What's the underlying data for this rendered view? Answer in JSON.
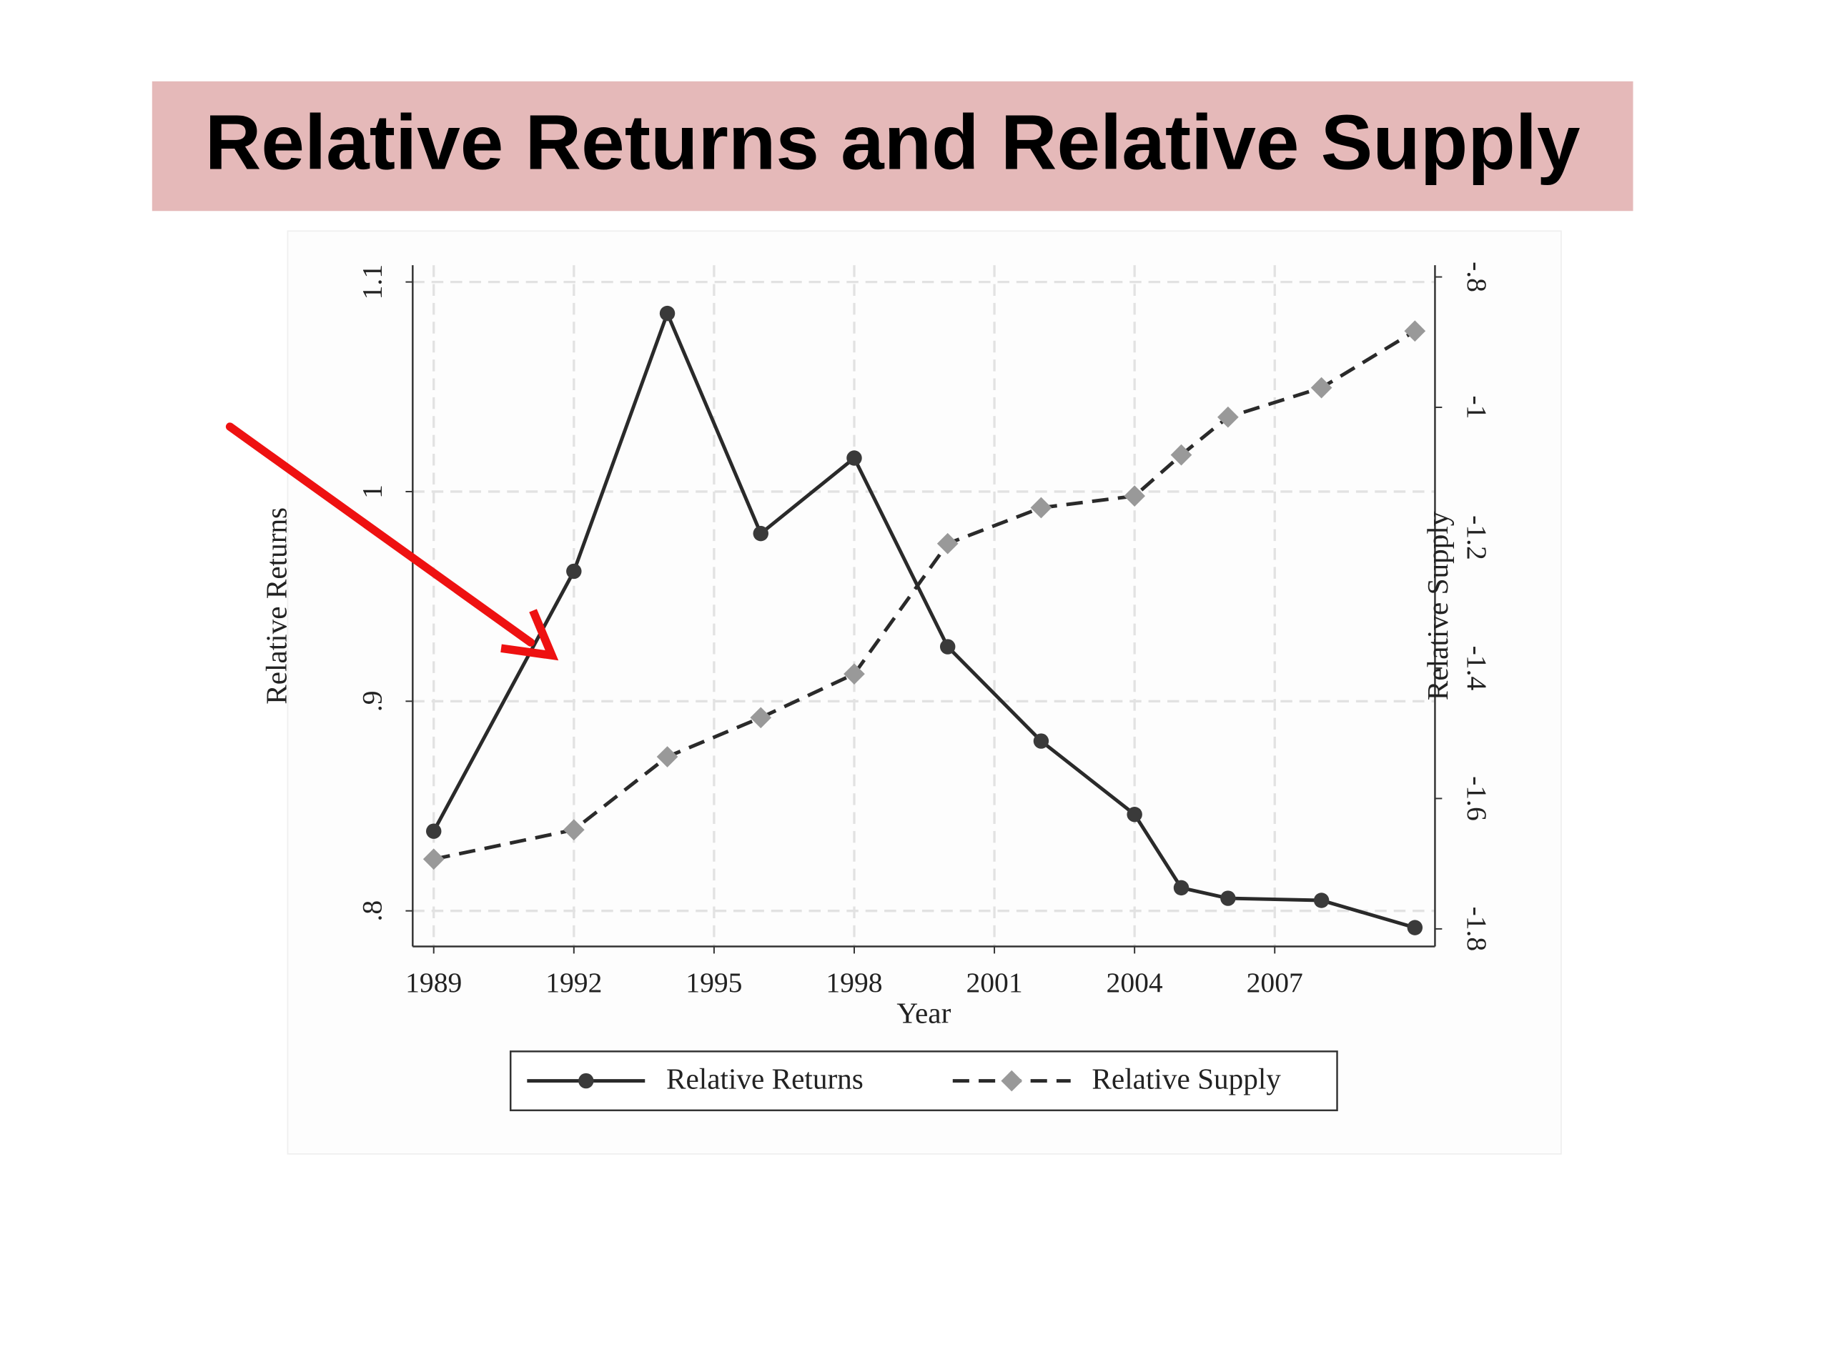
{
  "chart_data": {
    "type": "line",
    "title": "Relative Returns and Relative Supply",
    "x_label": "Year",
    "y_label": "Relative Returns",
    "y2_label": "Relative Supply",
    "x": [
      1989,
      1992,
      1994,
      1996,
      1998,
      2000,
      2002,
      2004,
      2005,
      2006,
      2008,
      2010
    ],
    "series": [
      {
        "name": "Relative Returns",
        "color": "#3a3a3a",
        "marker": "circle",
        "dashed": false,
        "values": [
          0.838,
          0.962,
          1.085,
          0.98,
          1.016,
          0.926,
          0.881,
          0.846,
          0.811,
          0.806,
          0.805,
          0.792
        ]
      },
      {
        "name": "Relative Supply",
        "color": "#999999",
        "marker": "diamond",
        "dashed": true,
        "axis": "y2",
        "values": [
          -1.693,
          -1.648,
          -1.536,
          -1.476,
          -1.409,
          -1.209,
          -1.154,
          -1.136,
          -1.073,
          -1.015,
          -0.97,
          -0.883
        ]
      }
    ],
    "xlim": [
      1988.55,
      2010.43
    ],
    "xticks": [
      1989,
      1992,
      1995,
      1998,
      2001,
      2004,
      2007
    ],
    "ylim": [
      0.783,
      1.108
    ],
    "yticks": [
      {
        "value": 0.8,
        "label": ".8"
      },
      {
        "value": 0.9,
        "label": ".9"
      },
      1,
      1.1
    ],
    "y2lim": [
      -1.827,
      -0.782
    ],
    "y2ticks": [
      {
        "value": -1.8,
        "label": "-1.8"
      },
      {
        "value": -1.6,
        "label": "-1.6"
      },
      {
        "value": -1.4,
        "label": "-1.4"
      },
      {
        "value": -1.2,
        "label": "-1.2"
      },
      -1,
      {
        "value": -0.8,
        "label": "-.8"
      }
    ],
    "grid": true
  }
}
